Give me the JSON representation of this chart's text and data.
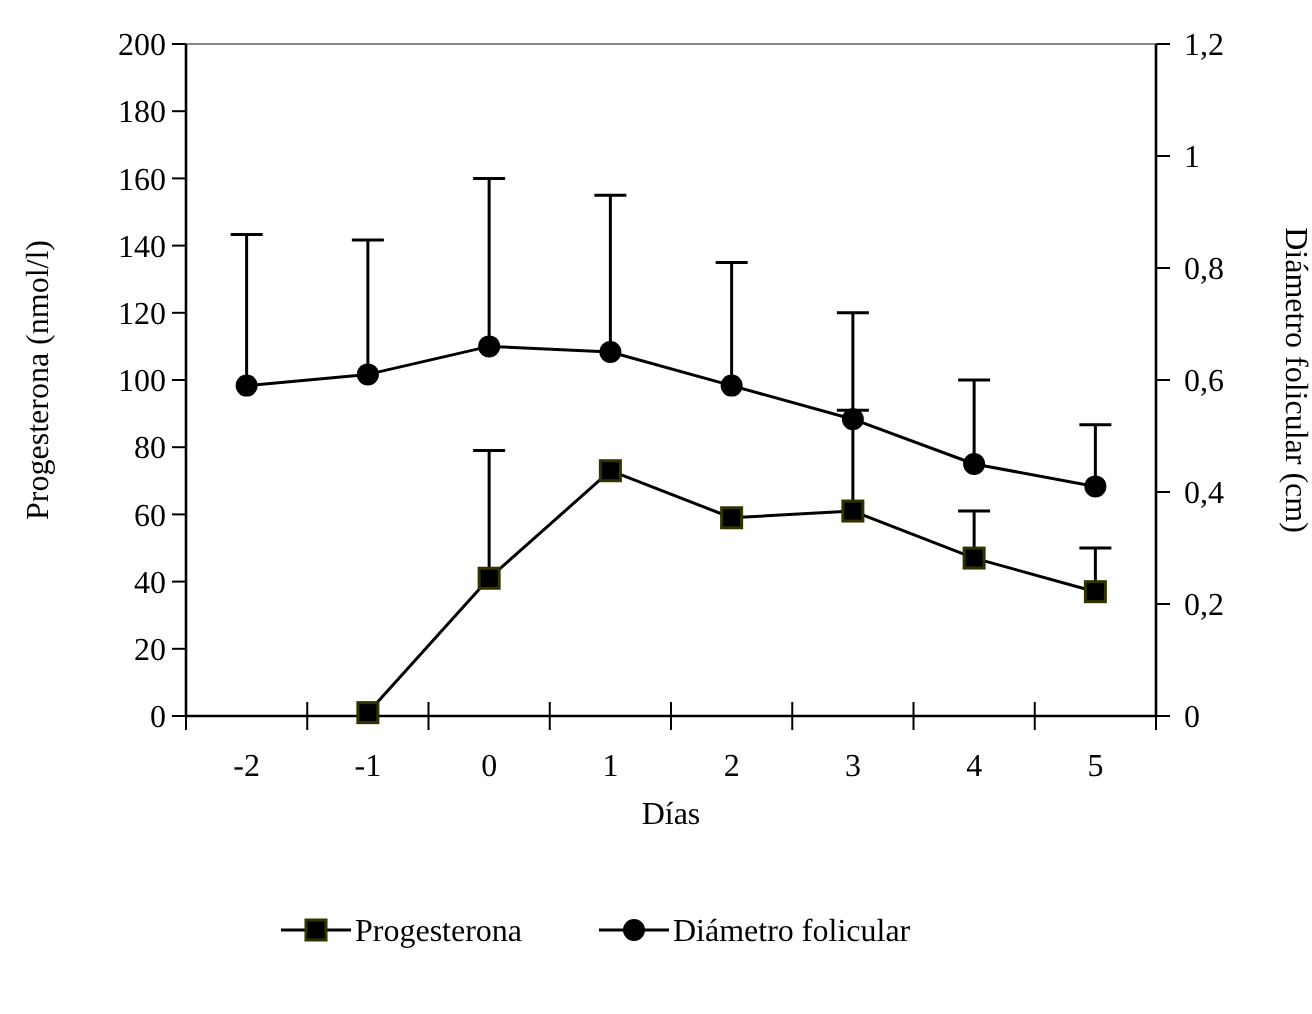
{
  "chart_data": {
    "type": "line",
    "xlabel": "Días",
    "ylabel": "Progesterona (nmol/l)",
    "y2label": "Diámetro folicular (cm)",
    "categories": [
      "-2",
      "-1",
      "0",
      "1",
      "2",
      "3",
      "4",
      "5"
    ],
    "ylim": [
      0,
      200
    ],
    "yticks": [
      0,
      20,
      40,
      60,
      80,
      100,
      120,
      140,
      160,
      180,
      200
    ],
    "y2lim": [
      0,
      1.2
    ],
    "y2ticks": [
      0,
      {
        "value": 0.2,
        "label": "0,2"
      },
      {
        "value": 0.4,
        "label": "0,4"
      },
      {
        "value": 0.6,
        "label": "0,6"
      },
      {
        "value": 0.8,
        "label": "0,8"
      },
      1,
      {
        "value": 1.2,
        "label": "1,2"
      }
    ],
    "legend": "bottom",
    "grid": false,
    "series": [
      {
        "name": "Progesterona",
        "color": "#000000",
        "marker": "square",
        "values": [
          null,
          1,
          41,
          73,
          59,
          61,
          47,
          37
        ],
        "errors": [
          null,
          null,
          [
            41,
            79
          ],
          null,
          null,
          [
            61,
            91
          ],
          [
            47,
            61
          ],
          [
            37,
            50
          ]
        ]
      },
      {
        "name": "Diámetro folicular",
        "color": "#000000",
        "marker": "circle",
        "axis": "y2",
        "values": [
          0.59,
          0.61,
          0.66,
          0.65,
          0.59,
          0.53,
          0.45,
          0.41
        ],
        "errors": [
          [
            0.59,
            0.86
          ],
          [
            0.61,
            0.85
          ],
          [
            0.66,
            0.96
          ],
          [
            0.65,
            0.93
          ],
          [
            0.59,
            0.81
          ],
          [
            0.53,
            0.72
          ],
          [
            0.45,
            0.6
          ],
          [
            0.41,
            0.52
          ]
        ]
      }
    ]
  }
}
